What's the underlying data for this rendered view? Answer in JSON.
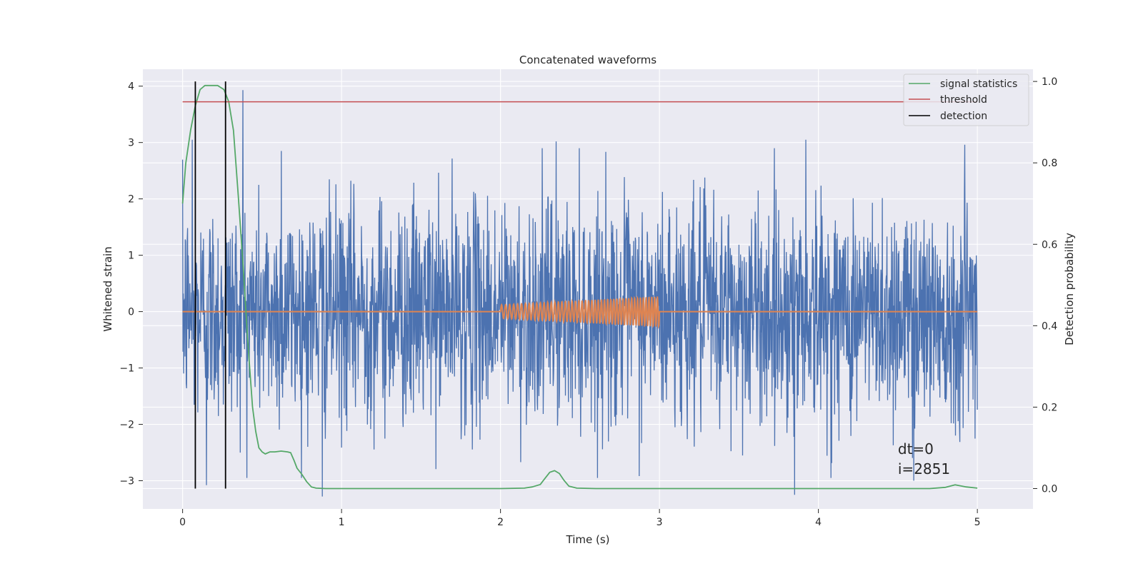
{
  "chart_data": {
    "type": "line",
    "title": "Concatenated waveforms",
    "xlabel": "Time (s)",
    "ylabel": "Whitened strain",
    "y2label": "Detection probability",
    "xlim": [
      -0.25,
      5.35
    ],
    "ylim": [
      -3.5,
      4.3
    ],
    "y2lim": [
      -0.05,
      1.03
    ],
    "xticks": [
      0,
      1,
      2,
      3,
      4,
      5
    ],
    "yticks": [
      -3,
      -2,
      -1,
      0,
      1,
      2,
      3,
      4
    ],
    "y2ticks": [
      0.0,
      0.2,
      0.4,
      0.6,
      0.8,
      1.0
    ],
    "xtick_labels": [
      "0",
      "1",
      "2",
      "3",
      "4",
      "5"
    ],
    "ytick_labels": [
      "−3",
      "−2",
      "−1",
      "0",
      "1",
      "2",
      "3",
      "4"
    ],
    "y2tick_labels": [
      "0.0",
      "0.2",
      "0.4",
      "0.6",
      "0.8",
      "1.0"
    ],
    "grid": true,
    "legend_position": "top-right",
    "colors": {
      "strain": "#4c72b0",
      "injected_signal": "#dd8452",
      "signal_statistics": "#55a868",
      "threshold": "#c44e52",
      "detection": "#000000",
      "background": "#eaeaf2"
    },
    "legend": [
      {
        "label": "signal statistics",
        "color": "#55a868"
      },
      {
        "label": "threshold",
        "color": "#c44e52"
      },
      {
        "label": "detection",
        "color": "#000000"
      }
    ],
    "series": [
      {
        "name": "strain",
        "axis": "left",
        "x_range": [
          0,
          5
        ],
        "typical_amplitude": 1.35,
        "peaks": [
          {
            "x": 0.38,
            "y": 3.93
          },
          {
            "x": 0.06,
            "y": 3.05
          },
          {
            "x": 0.62,
            "y": 2.85
          },
          {
            "x": 2.35,
            "y": 3.02
          },
          {
            "x": 3.92,
            "y": 3.05
          },
          {
            "x": 4.92,
            "y": 2.96
          },
          {
            "x": 0.15,
            "y": -3.08
          },
          {
            "x": 0.88,
            "y": -3.28
          },
          {
            "x": 3.85,
            "y": -3.25
          },
          {
            "x": 4.6,
            "y": -3.0
          }
        ]
      },
      {
        "name": "injected signal",
        "axis": "left",
        "x_range": [
          0,
          5
        ],
        "chirp_start": 2.0,
        "chirp_end": 3.0,
        "chirp_amplitude": [
          0.12,
          0.27
        ],
        "chirp_cycles": 48
      },
      {
        "name": "signal statistics",
        "axis": "right",
        "x": [
          0,
          0.02,
          0.05,
          0.08,
          0.11,
          0.14,
          0.18,
          0.22,
          0.26,
          0.29,
          0.32,
          0.35,
          0.38,
          0.41,
          0.44,
          0.46,
          0.48,
          0.5,
          0.52,
          0.55,
          0.58,
          0.62,
          0.66,
          0.68,
          0.7,
          0.72,
          0.75,
          0.78,
          0.81,
          0.84,
          0.9,
          1.0,
          2.0,
          2.15,
          2.2,
          2.25,
          2.28,
          2.31,
          2.34,
          2.37,
          2.4,
          2.43,
          2.48,
          2.6,
          4.7,
          4.8,
          4.86,
          4.93,
          5.0
        ],
        "y": [
          0.7,
          0.8,
          0.88,
          0.94,
          0.98,
          0.99,
          0.99,
          0.99,
          0.98,
          0.95,
          0.88,
          0.72,
          0.55,
          0.36,
          0.2,
          0.14,
          0.1,
          0.09,
          0.085,
          0.09,
          0.09,
          0.092,
          0.09,
          0.088,
          0.07,
          0.05,
          0.035,
          0.017,
          0.004,
          0.001,
          0.0,
          0.0,
          0.0,
          0.001,
          0.004,
          0.01,
          0.025,
          0.04,
          0.044,
          0.037,
          0.02,
          0.006,
          0.001,
          0.0,
          0.0,
          0.003,
          0.009,
          0.004,
          0.001
        ]
      },
      {
        "name": "threshold",
        "axis": "right",
        "x": [
          0,
          5
        ],
        "y": [
          0.95,
          0.95
        ]
      },
      {
        "name": "detection",
        "axis": "right",
        "x": [
          0.08,
          0.27
        ],
        "y_range": [
          0.0,
          1.0
        ]
      }
    ],
    "annotation": {
      "lines": [
        "dt=0",
        "i=2851"
      ],
      "x": 4.5,
      "y": -2.5
    }
  }
}
